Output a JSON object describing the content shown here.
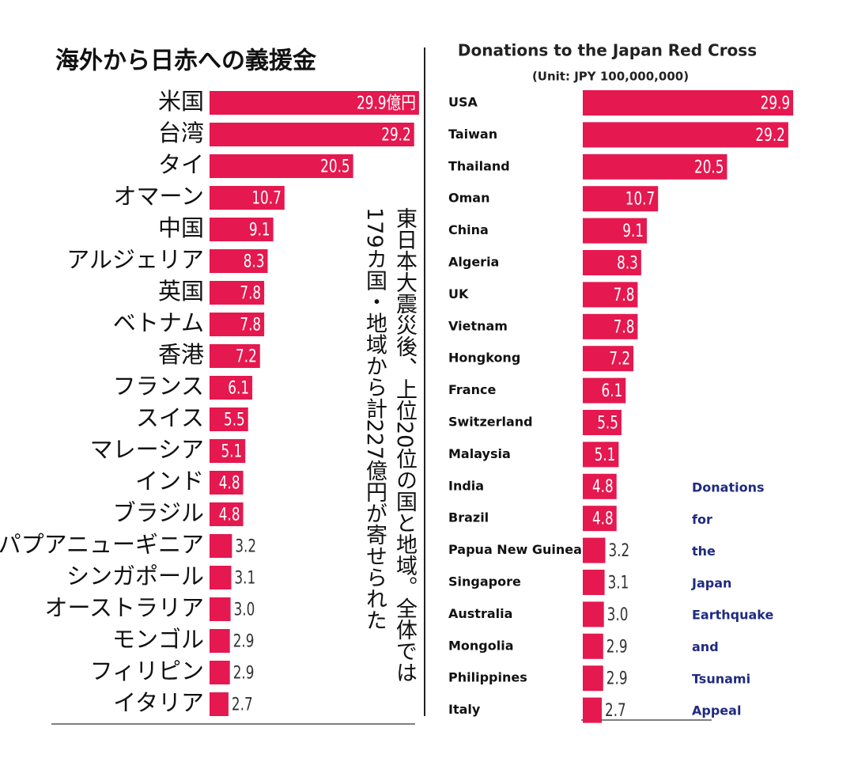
{
  "chart_data": [
    {
      "type": "bar",
      "orientation": "horizontal",
      "title": "海外から日赤への義援金",
      "categories": [
        "米国",
        "台湾",
        "タイ",
        "オマーン",
        "中国",
        "アルジェリア",
        "英国",
        "ベトナム",
        "香港",
        "フランス",
        "スイス",
        "マレーシア",
        "インド",
        "ブラジル",
        "パプアニューギニア",
        "シンガポール",
        "オーストラリア",
        "モンゴル",
        "フィリピン",
        "イタリア"
      ],
      "values": [
        29.9,
        29.2,
        20.5,
        10.7,
        9.1,
        8.3,
        7.8,
        7.8,
        7.2,
        6.1,
        5.5,
        5.1,
        4.8,
        4.8,
        3.2,
        3.1,
        3.0,
        2.9,
        2.9,
        2.7
      ],
      "value_labels": [
        "29.9億円",
        "29.2",
        "20.5",
        "10.7",
        "9.1",
        "8.3",
        "7.8",
        "7.8",
        "7.2",
        "6.1",
        "5.5",
        "5.1",
        "4.8",
        "4.8",
        "3.2",
        "3.1",
        "3.0",
        "2.9",
        "2.9",
        "2.7"
      ],
      "color": "#e5184f",
      "annotation": "東日本大震災後、上位20位の国と地域。全体では179カ国・地域から計227億円が寄せられた"
    },
    {
      "type": "bar",
      "orientation": "horizontal",
      "title": "Donations to the Japan Red Cross",
      "subtitle": "(Unit: JPY 100,000,000)",
      "categories": [
        "USA",
        "Taiwan",
        "Thailand",
        "Oman",
        "China",
        "Algeria",
        "UK",
        "Vietnam",
        "Hongkong",
        "France",
        "Switzerland",
        "Malaysia",
        "India",
        "Brazil",
        "Papua New Guinea",
        "Singapore",
        "Australia",
        "Mongolia",
        "Philippines",
        "Italy"
      ],
      "values": [
        29.9,
        29.2,
        20.5,
        10.7,
        9.1,
        8.3,
        7.8,
        7.8,
        7.2,
        6.1,
        5.5,
        5.1,
        4.8,
        4.8,
        3.2,
        3.1,
        3.0,
        2.9,
        2.9,
        2.7
      ],
      "value_labels": [
        "29.9",
        "29.2",
        "20.5",
        "10.7",
        "9.1",
        "8.3",
        "7.8",
        "7.8",
        "7.2",
        "6.1",
        "5.5",
        "5.1",
        "4.8",
        "4.8",
        "3.2",
        "3.1",
        "3.0",
        "2.9",
        "2.9",
        "2.7"
      ],
      "color": "#e5184f",
      "annotation": [
        "Donations",
        "for",
        "the",
        "Japan",
        "Earthquake",
        "and",
        "Tsunami",
        "Appeal"
      ]
    }
  ]
}
